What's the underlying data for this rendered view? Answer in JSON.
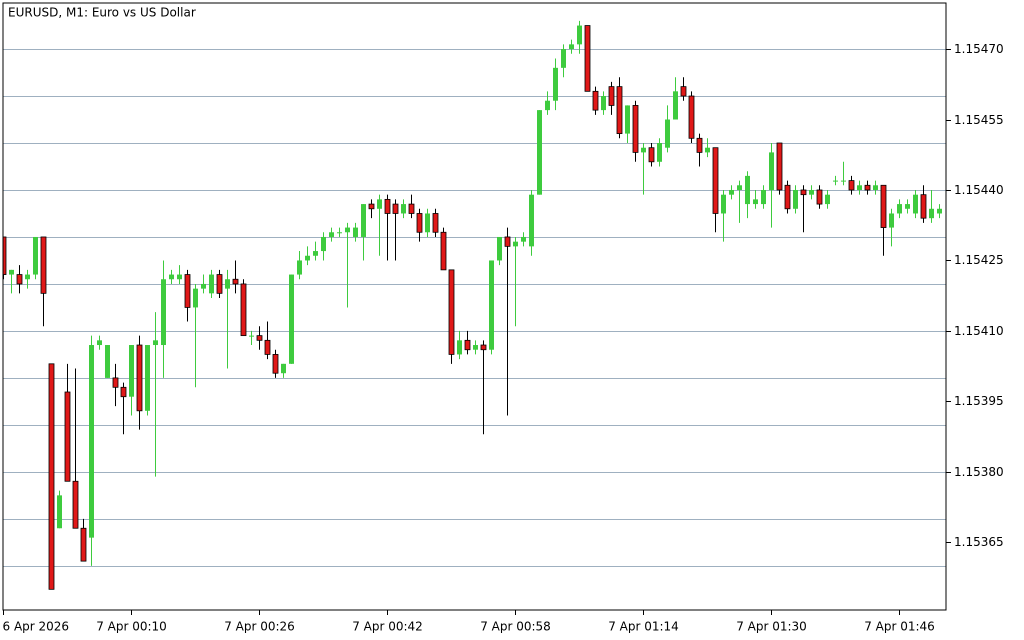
{
  "chart_data": {
    "type": "candlestick",
    "title": "EURUSD, M1:  Euro vs US Dollar",
    "up_color": "#3ecb3e",
    "down_color": "#e01818",
    "grid_color": "#9fb0c0",
    "open": [
      1.1543,
      1.15422,
      1.15422,
      1.15421,
      1.15422,
      1.1543,
      1.15403,
      1.15368,
      1.15397,
      1.15378,
      1.15368,
      1.15366,
      1.15407,
      1.154,
      1.154,
      1.15398,
      1.15396,
      1.15407,
      1.15393,
      1.15407,
      1.15407,
      1.15421,
      1.15421,
      1.15422,
      1.15415,
      1.15419,
      1.15418,
      1.15422,
      1.15419,
      1.15421,
      1.1542,
      1.15409,
      1.15409,
      1.15408,
      1.15405,
      1.15401,
      1.15403,
      1.15422,
      1.15425,
      1.15426,
      1.15427,
      1.1543,
      1.15431,
      1.15431,
      1.1543,
      1.1543,
      1.15437,
      1.15436,
      1.15438,
      1.15437,
      1.15435,
      1.15437,
      1.15435,
      1.15431,
      1.15435,
      1.15431,
      1.15423,
      1.15405,
      1.15408,
      1.15406,
      1.15407,
      1.15406,
      1.15425,
      1.1543,
      1.15428,
      1.15429,
      1.15428,
      1.15439,
      1.15457,
      1.15459,
      1.15466,
      1.1547,
      1.15471,
      1.15475,
      1.15461,
      1.15457,
      1.15462,
      1.15462,
      1.15452,
      1.15458,
      1.15448,
      1.15449,
      1.15446,
      1.15449,
      1.15455,
      1.15462,
      1.1546,
      1.15451,
      1.15448,
      1.15449,
      1.15435,
      1.15439,
      1.1544,
      1.15437,
      1.15437,
      1.15437,
      1.1544,
      1.1545,
      1.15441,
      1.15436,
      1.1544,
      1.15439,
      1.1544,
      1.15437,
      1.15442,
      1.15442,
      1.15442,
      1.1544,
      1.15441,
      1.1544,
      1.15441,
      1.15432,
      1.15435,
      1.15436,
      1.15435,
      1.15439,
      1.15434,
      1.15435
    ],
    "high": [
      1.1543,
      1.15423,
      1.15424,
      1.15423,
      1.1543,
      1.1543,
      1.15403,
      1.15376,
      1.15403,
      1.15402,
      1.1537,
      1.15409,
      1.15409,
      1.15407,
      1.15403,
      1.15399,
      1.15407,
      1.15409,
      1.15407,
      1.15414,
      1.15425,
      1.15423,
      1.15424,
      1.15423,
      1.1542,
      1.15422,
      1.15423,
      1.15423,
      1.15423,
      1.15425,
      1.15421,
      1.1541,
      1.15411,
      1.15412,
      1.15406,
      1.15403,
      1.15422,
      1.15427,
      1.15428,
      1.15429,
      1.15431,
      1.15432,
      1.15432,
      1.15433,
      1.15433,
      1.15437,
      1.15438,
      1.15439,
      1.15439,
      1.15438,
      1.15438,
      1.15439,
      1.15436,
      1.15436,
      1.15436,
      1.15432,
      1.15423,
      1.1541,
      1.1541,
      1.15408,
      1.15408,
      1.15425,
      1.1543,
      1.15432,
      1.1543,
      1.15431,
      1.1544,
      1.15457,
      1.15461,
      1.15468,
      1.15471,
      1.15472,
      1.15476,
      1.15475,
      1.15462,
      1.15461,
      1.15463,
      1.15464,
      1.15458,
      1.15459,
      1.1545,
      1.1545,
      1.15451,
      1.15458,
      1.15464,
      1.15464,
      1.15461,
      1.15452,
      1.15451,
      1.15449,
      1.1544,
      1.15441,
      1.15442,
      1.15444,
      1.1544,
      1.15441,
      1.1545,
      1.1545,
      1.15442,
      1.15441,
      1.15441,
      1.15441,
      1.15441,
      1.1544,
      1.15443,
      1.15446,
      1.15443,
      1.15442,
      1.15442,
      1.15442,
      1.15441,
      1.15436,
      1.15438,
      1.15438,
      1.1544,
      1.15441,
      1.1544,
      1.15437
    ],
    "low": [
      1.15421,
      1.15418,
      1.15418,
      1.15419,
      1.15421,
      1.15411,
      1.15355,
      1.15368,
      1.15378,
      1.15368,
      1.15361,
      1.1536,
      1.15406,
      1.154,
      1.15394,
      1.15388,
      1.15392,
      1.15389,
      1.15392,
      1.15379,
      1.154,
      1.1542,
      1.1542,
      1.15412,
      1.15398,
      1.15418,
      1.15417,
      1.15417,
      1.15402,
      1.15418,
      1.15409,
      1.15407,
      1.15406,
      1.15404,
      1.154,
      1.154,
      1.15403,
      1.15421,
      1.15424,
      1.15425,
      1.15425,
      1.15429,
      1.1543,
      1.15415,
      1.15429,
      1.15425,
      1.15434,
      1.15426,
      1.15425,
      1.15425,
      1.15434,
      1.15434,
      1.15429,
      1.1543,
      1.1543,
      1.15423,
      1.15403,
      1.15404,
      1.15405,
      1.15405,
      1.15388,
      1.15405,
      1.15424,
      1.15392,
      1.15411,
      1.15428,
      1.15426,
      1.15439,
      1.15456,
      1.15457,
      1.15464,
      1.15469,
      1.15469,
      1.15461,
      1.15456,
      1.15456,
      1.15456,
      1.15451,
      1.1545,
      1.15446,
      1.15439,
      1.15445,
      1.15445,
      1.15448,
      1.15455,
      1.15459,
      1.1545,
      1.15445,
      1.15447,
      1.15431,
      1.15429,
      1.15438,
      1.15433,
      1.15434,
      1.15436,
      1.15436,
      1.15432,
      1.15439,
      1.15435,
      1.15435,
      1.15431,
      1.15438,
      1.15436,
      1.15436,
      1.15441,
      1.15441,
      1.15439,
      1.15439,
      1.15439,
      1.15439,
      1.15426,
      1.15428,
      1.15434,
      1.15435,
      1.15434,
      1.15433,
      1.15433,
      1.15434
    ],
    "close": [
      1.15422,
      1.15423,
      1.1542,
      1.15422,
      1.1543,
      1.15418,
      1.15355,
      1.15375,
      1.15378,
      1.15368,
      1.15361,
      1.15407,
      1.15408,
      1.15407,
      1.15398,
      1.15396,
      1.15407,
      1.15393,
      1.15407,
      1.15408,
      1.15421,
      1.15422,
      1.15422,
      1.15415,
      1.15419,
      1.1542,
      1.15422,
      1.15418,
      1.15421,
      1.1542,
      1.15409,
      1.15409,
      1.15408,
      1.15405,
      1.15401,
      1.15403,
      1.15422,
      1.15425,
      1.15426,
      1.15427,
      1.1543,
      1.15431,
      1.15431,
      1.15432,
      1.15432,
      1.15437,
      1.15436,
      1.15438,
      1.15435,
      1.15435,
      1.15437,
      1.15435,
      1.15431,
      1.15435,
      1.15431,
      1.15423,
      1.15405,
      1.15408,
      1.15406,
      1.15407,
      1.15406,
      1.15425,
      1.1543,
      1.15428,
      1.15429,
      1.1543,
      1.15439,
      1.15457,
      1.15459,
      1.15466,
      1.1547,
      1.15471,
      1.15475,
      1.15461,
      1.15457,
      1.1546,
      1.15458,
      1.15452,
      1.15458,
      1.15448,
      1.15449,
      1.15446,
      1.1545,
      1.15455,
      1.15461,
      1.1546,
      1.15451,
      1.15448,
      1.15449,
      1.15435,
      1.15439,
      1.1544,
      1.15441,
      1.15443,
      1.15438,
      1.1544,
      1.15448,
      1.1544,
      1.15436,
      1.1544,
      1.15439,
      1.1544,
      1.15437,
      1.15439,
      1.15442,
      1.15442,
      1.1544,
      1.15441,
      1.1544,
      1.15441,
      1.15432,
      1.15435,
      1.15437,
      1.15437,
      1.15439,
      1.15434,
      1.15436,
      1.15436
    ],
    "xlim": [
      0,
      117.875
    ],
    "xticks": [
      {
        "value": 0,
        "label": "6 Apr 2026"
      },
      {
        "value": 16,
        "label": "7 Apr 00:10"
      },
      {
        "value": 32,
        "label": "7 Apr 00:26"
      },
      {
        "value": 48,
        "label": "7 Apr 00:42"
      },
      {
        "value": 64,
        "label": "7 Apr 00:58"
      },
      {
        "value": 80,
        "label": "7 Apr 01:14"
      },
      {
        "value": 96,
        "label": "7 Apr 01:30"
      },
      {
        "value": 112,
        "label": "7 Apr 01:46"
      }
    ],
    "ylim": [
      1.153506,
      1.154798
    ],
    "yticks": [
      {
        "value": 1.1547,
        "label": "1.15470"
      },
      1.15455,
      {
        "value": 1.1544,
        "label": "1.15440"
      },
      1.15425,
      {
        "value": 1.1541,
        "label": "1.15410"
      },
      1.15395,
      {
        "value": 1.1538,
        "label": "1.15380"
      },
      1.15365
    ],
    "grid": true,
    "grid_levels": [
      1.1547,
      1.1546,
      1.1545,
      1.1544,
      1.1543,
      1.1542,
      1.1541,
      1.154,
      1.1539,
      1.1538,
      1.1537,
      1.1536
    ]
  }
}
